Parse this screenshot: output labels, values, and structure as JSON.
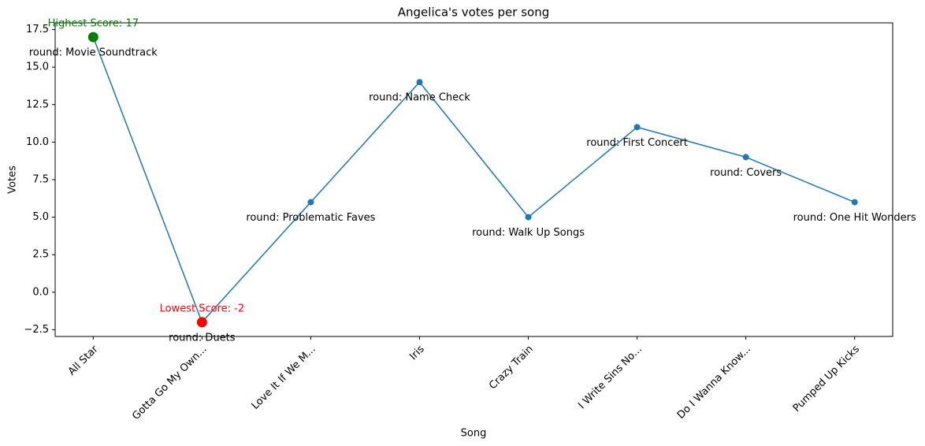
{
  "chart_data": {
    "type": "line",
    "title": "Angelica's votes per song",
    "xlabel": "Song",
    "ylabel": "Votes",
    "categories": [
      "All Star",
      "Gotta Go My Own...",
      "Love It If We M...",
      "Iris",
      "Crazy Train",
      "I Write Sins No...",
      "Do I Wanna Know...",
      "Pumped Up Kicks"
    ],
    "series": [
      {
        "color": "#1f77b4",
        "values": [
          17,
          -2,
          6,
          14,
          5,
          11,
          9,
          6
        ],
        "point_labels": [
          "round: Movie Soundtrack",
          "round: Duets",
          "round: Problematic Faves",
          "round: Name Check",
          "round: Walk Up Songs",
          "round: First Concert",
          "round: Covers",
          "round: One Hit Wonders"
        ]
      }
    ],
    "highlights": [
      {
        "category": "All Star",
        "value": 17,
        "label": "Highest Score: 17",
        "color": "green"
      },
      {
        "category": "Gotta Go My Own...",
        "value": -2,
        "label": "Lowest Score: -2",
        "color": "red"
      }
    ],
    "ylim": [
      -2.95,
      17.95
    ],
    "yticks": [
      {
        "value": -2.5,
        "label": "−2.5"
      },
      {
        "value": 0,
        "label": "0.0"
      },
      2.5,
      {
        "value": 5,
        "label": "5.0"
      },
      7.5,
      {
        "value": 10,
        "label": "10.0"
      },
      12.5,
      {
        "value": 15,
        "label": "15.0"
      },
      17.5
    ],
    "grid": false
  }
}
